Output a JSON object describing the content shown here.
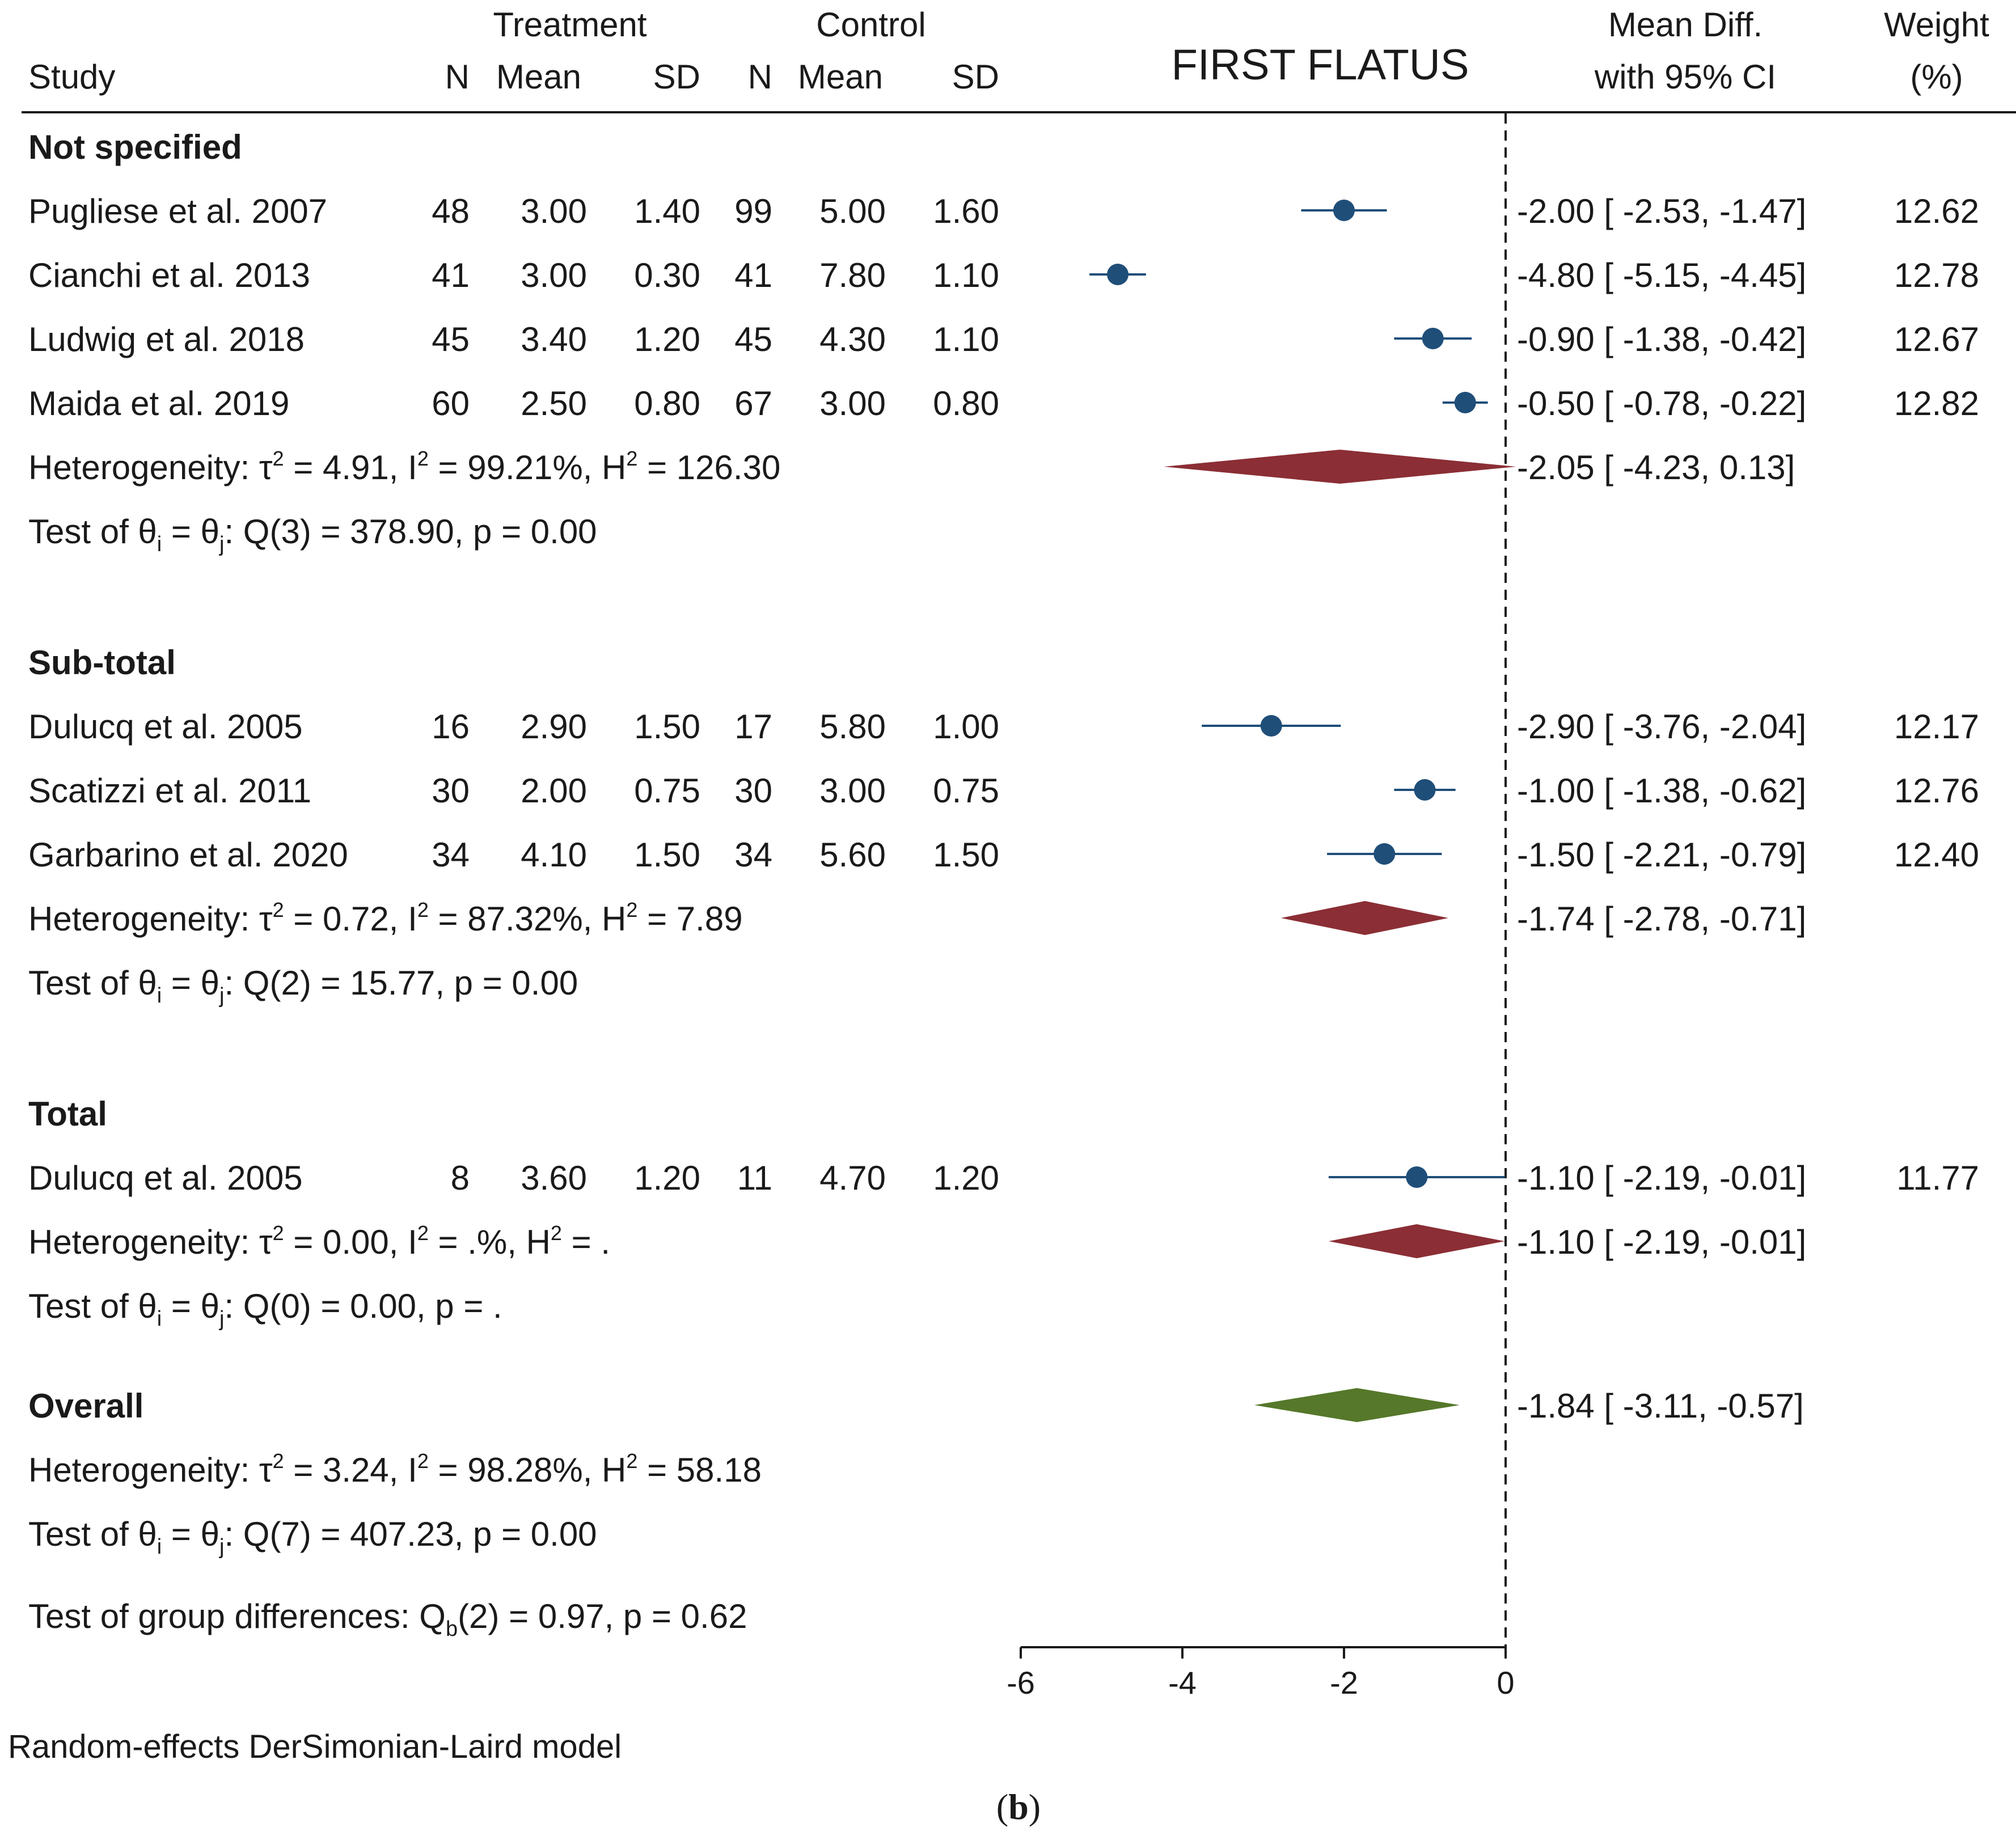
{
  "chart_data": {
    "type": "forest",
    "title": "FIRST FLATUS",
    "column_headers": {
      "study": "Study",
      "treatment_group": "Treatment",
      "control_group": "Control",
      "n": "N",
      "mean": "Mean",
      "sd": "SD",
      "effect_line1": "Mean Diff.",
      "effect_line2": "with 95% CI",
      "weight_line1": "Weight",
      "weight_line2": "(%)"
    },
    "x_axis": {
      "min": -6,
      "max": 0,
      "ticks": [
        -6,
        -4,
        -2,
        0
      ],
      "tick_labels": [
        "-6",
        "-4",
        "-2",
        "0"
      ],
      "null_line": 0
    },
    "groups": [
      {
        "label": "Not specified",
        "studies": [
          {
            "study": "Pugliese et al. 2007",
            "t_n": "48",
            "t_mean": "3.00",
            "t_sd": "1.40",
            "c_n": "99",
            "c_mean": "5.00",
            "c_sd": "1.60",
            "md": -2.0,
            "lo": -2.53,
            "hi": -1.47,
            "ci_text": "-2.00 [ -2.53,  -1.47]",
            "weight": "12.62"
          },
          {
            "study": "Cianchi et al. 2013",
            "t_n": "41",
            "t_mean": "3.00",
            "t_sd": "0.30",
            "c_n": "41",
            "c_mean": "7.80",
            "c_sd": "1.10",
            "md": -4.8,
            "lo": -5.15,
            "hi": -4.45,
            "ci_text": "-4.80 [ -5.15,  -4.45]",
            "weight": "12.78"
          },
          {
            "study": "Ludwig et al. 2018",
            "t_n": "45",
            "t_mean": "3.40",
            "t_sd": "1.20",
            "c_n": "45",
            "c_mean": "4.30",
            "c_sd": "1.10",
            "md": -0.9,
            "lo": -1.38,
            "hi": -0.42,
            "ci_text": "-0.90 [ -1.38,  -0.42]",
            "weight": "12.67"
          },
          {
            "study": "Maida et al. 2019",
            "t_n": "60",
            "t_mean": "2.50",
            "t_sd": "0.80",
            "c_n": "67",
            "c_mean": "3.00",
            "c_sd": "0.80",
            "md": -0.5,
            "lo": -0.78,
            "hi": -0.22,
            "ci_text": "-0.50 [ -0.78,  -0.22]",
            "weight": "12.82"
          }
        ],
        "heterogeneity": {
          "tau2": "4.91",
          "i2": "99.21%",
          "h2": "126.30"
        },
        "test": {
          "q_label": "Q(3)",
          "q_value": "378.90",
          "p": "0.00"
        },
        "pooled": {
          "md": -2.05,
          "lo": -4.23,
          "hi": 0.13,
          "ci_text": "-2.05 [ -4.23,   0.13]"
        }
      },
      {
        "label": "Sub-total",
        "studies": [
          {
            "study": "Dulucq et al. 2005",
            "t_n": "16",
            "t_mean": "2.90",
            "t_sd": "1.50",
            "c_n": "17",
            "c_mean": "5.80",
            "c_sd": "1.00",
            "md": -2.9,
            "lo": -3.76,
            "hi": -2.04,
            "ci_text": "-2.90 [ -3.76,  -2.04]",
            "weight": "12.17"
          },
          {
            "study": "Scatizzi et al. 2011",
            "t_n": "30",
            "t_mean": "2.00",
            "t_sd": "0.75",
            "c_n": "30",
            "c_mean": "3.00",
            "c_sd": "0.75",
            "md": -1.0,
            "lo": -1.38,
            "hi": -0.62,
            "ci_text": "-1.00 [ -1.38,  -0.62]",
            "weight": "12.76"
          },
          {
            "study": "Garbarino et al. 2020",
            "t_n": "34",
            "t_mean": "4.10",
            "t_sd": "1.50",
            "c_n": "34",
            "c_mean": "5.60",
            "c_sd": "1.50",
            "md": -1.5,
            "lo": -2.21,
            "hi": -0.79,
            "ci_text": "-1.50 [ -2.21,  -0.79]",
            "weight": "12.40"
          }
        ],
        "heterogeneity": {
          "tau2": "0.72",
          "i2": "87.32%",
          "h2": "7.89"
        },
        "test": {
          "q_label": "Q(2)",
          "q_value": "15.77",
          "p": "0.00"
        },
        "pooled": {
          "md": -1.74,
          "lo": -2.78,
          "hi": -0.71,
          "ci_text": "-1.74 [ -2.78,  -0.71]"
        }
      },
      {
        "label": "Total",
        "studies": [
          {
            "study": "Dulucq et al. 2005",
            "t_n": "8",
            "t_mean": "3.60",
            "t_sd": "1.20",
            "c_n": "11",
            "c_mean": "4.70",
            "c_sd": "1.20",
            "md": -1.1,
            "lo": -2.19,
            "hi": -0.01,
            "ci_text": "-1.10 [ -2.19,  -0.01]",
            "weight": "11.77"
          }
        ],
        "heterogeneity": {
          "tau2": "0.00",
          "i2": ".%",
          "h2": "."
        },
        "test": {
          "q_label": "Q(0)",
          "q_value": "0.00",
          "p": "."
        },
        "pooled": {
          "md": -1.1,
          "lo": -2.19,
          "hi": -0.01,
          "ci_text": "-1.10 [ -2.19,  -0.01]"
        }
      }
    ],
    "overall": {
      "label": "Overall",
      "md": -1.84,
      "lo": -3.11,
      "hi": -0.57,
      "ci_text": "-1.84 [ -3.11,  -0.57]",
      "heterogeneity": {
        "tau2": "3.24",
        "i2": "98.28%",
        "h2": "58.18"
      },
      "test": {
        "q_label": "Q(7)",
        "q_value": "407.23",
        "p": "0.00"
      }
    },
    "group_difference_test": {
      "q_label": "Q",
      "q_sub": "b",
      "df": "(2)",
      "value": "0.97",
      "p": "0.62"
    },
    "footnote": "Random-effects DerSimonian-Laird model",
    "caption": "(b)",
    "colors": {
      "marker": "#1f4e79",
      "subgroup_diamond": "#8b2e35",
      "overall_diamond": "#55782a",
      "text": "#1a1a1a"
    }
  }
}
